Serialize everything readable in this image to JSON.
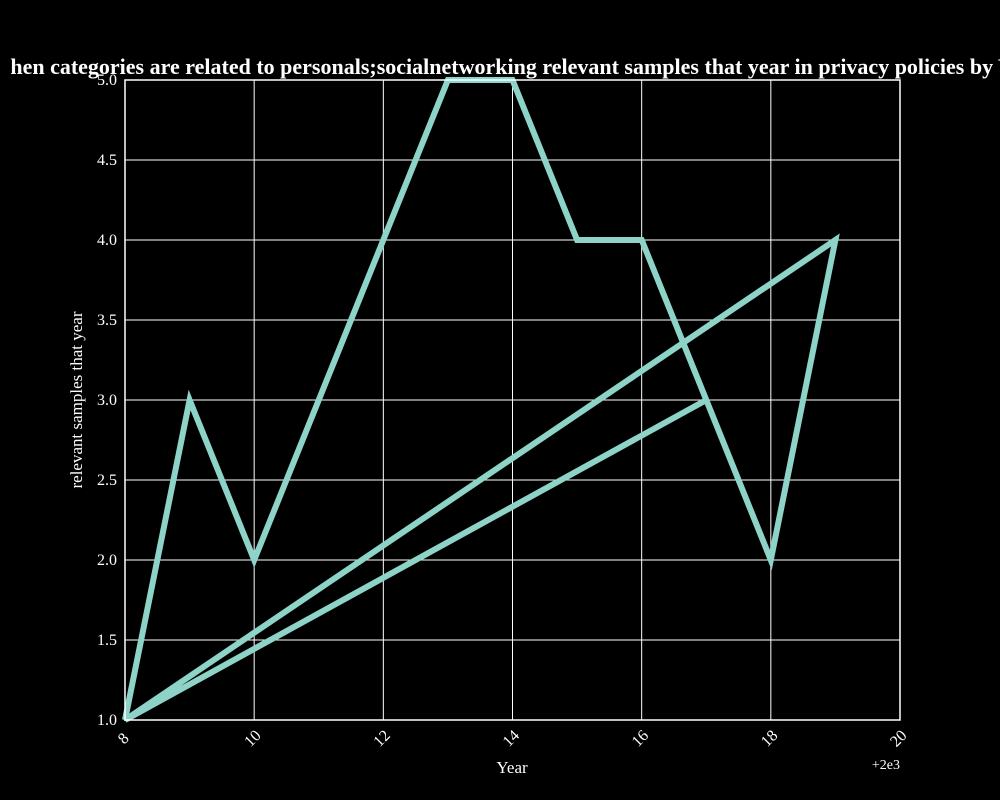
{
  "chart_data": {
    "type": "line",
    "title": "hen categories are related to personals;socialnetworking relevant samples that year in privacy policies by Y",
    "xlabel": "Year",
    "ylabel": "relevant samples that year",
    "x_offset_label": "+2e3",
    "xlim": [
      8,
      20
    ],
    "ylim": [
      1.0,
      5.0
    ],
    "x_ticks": [
      "8",
      "10",
      "12",
      "14",
      "16",
      "18",
      "20"
    ],
    "y_ticks": [
      "1.0",
      "1.5",
      "2.0",
      "2.5",
      "3.0",
      "3.5",
      "4.0",
      "4.5",
      "5.0"
    ],
    "grid": true,
    "colors": {
      "background": "#000000",
      "line": "#8dd3c7",
      "grid": "#ffffff",
      "text": "#ffffff"
    },
    "series": [
      {
        "x": [
          8,
          9,
          10,
          12,
          13,
          14,
          15,
          16,
          17,
          18,
          19,
          8,
          17
        ],
        "y": [
          1,
          3,
          2,
          4,
          5,
          5,
          4,
          4,
          3,
          2,
          4,
          1,
          3
        ]
      }
    ]
  }
}
